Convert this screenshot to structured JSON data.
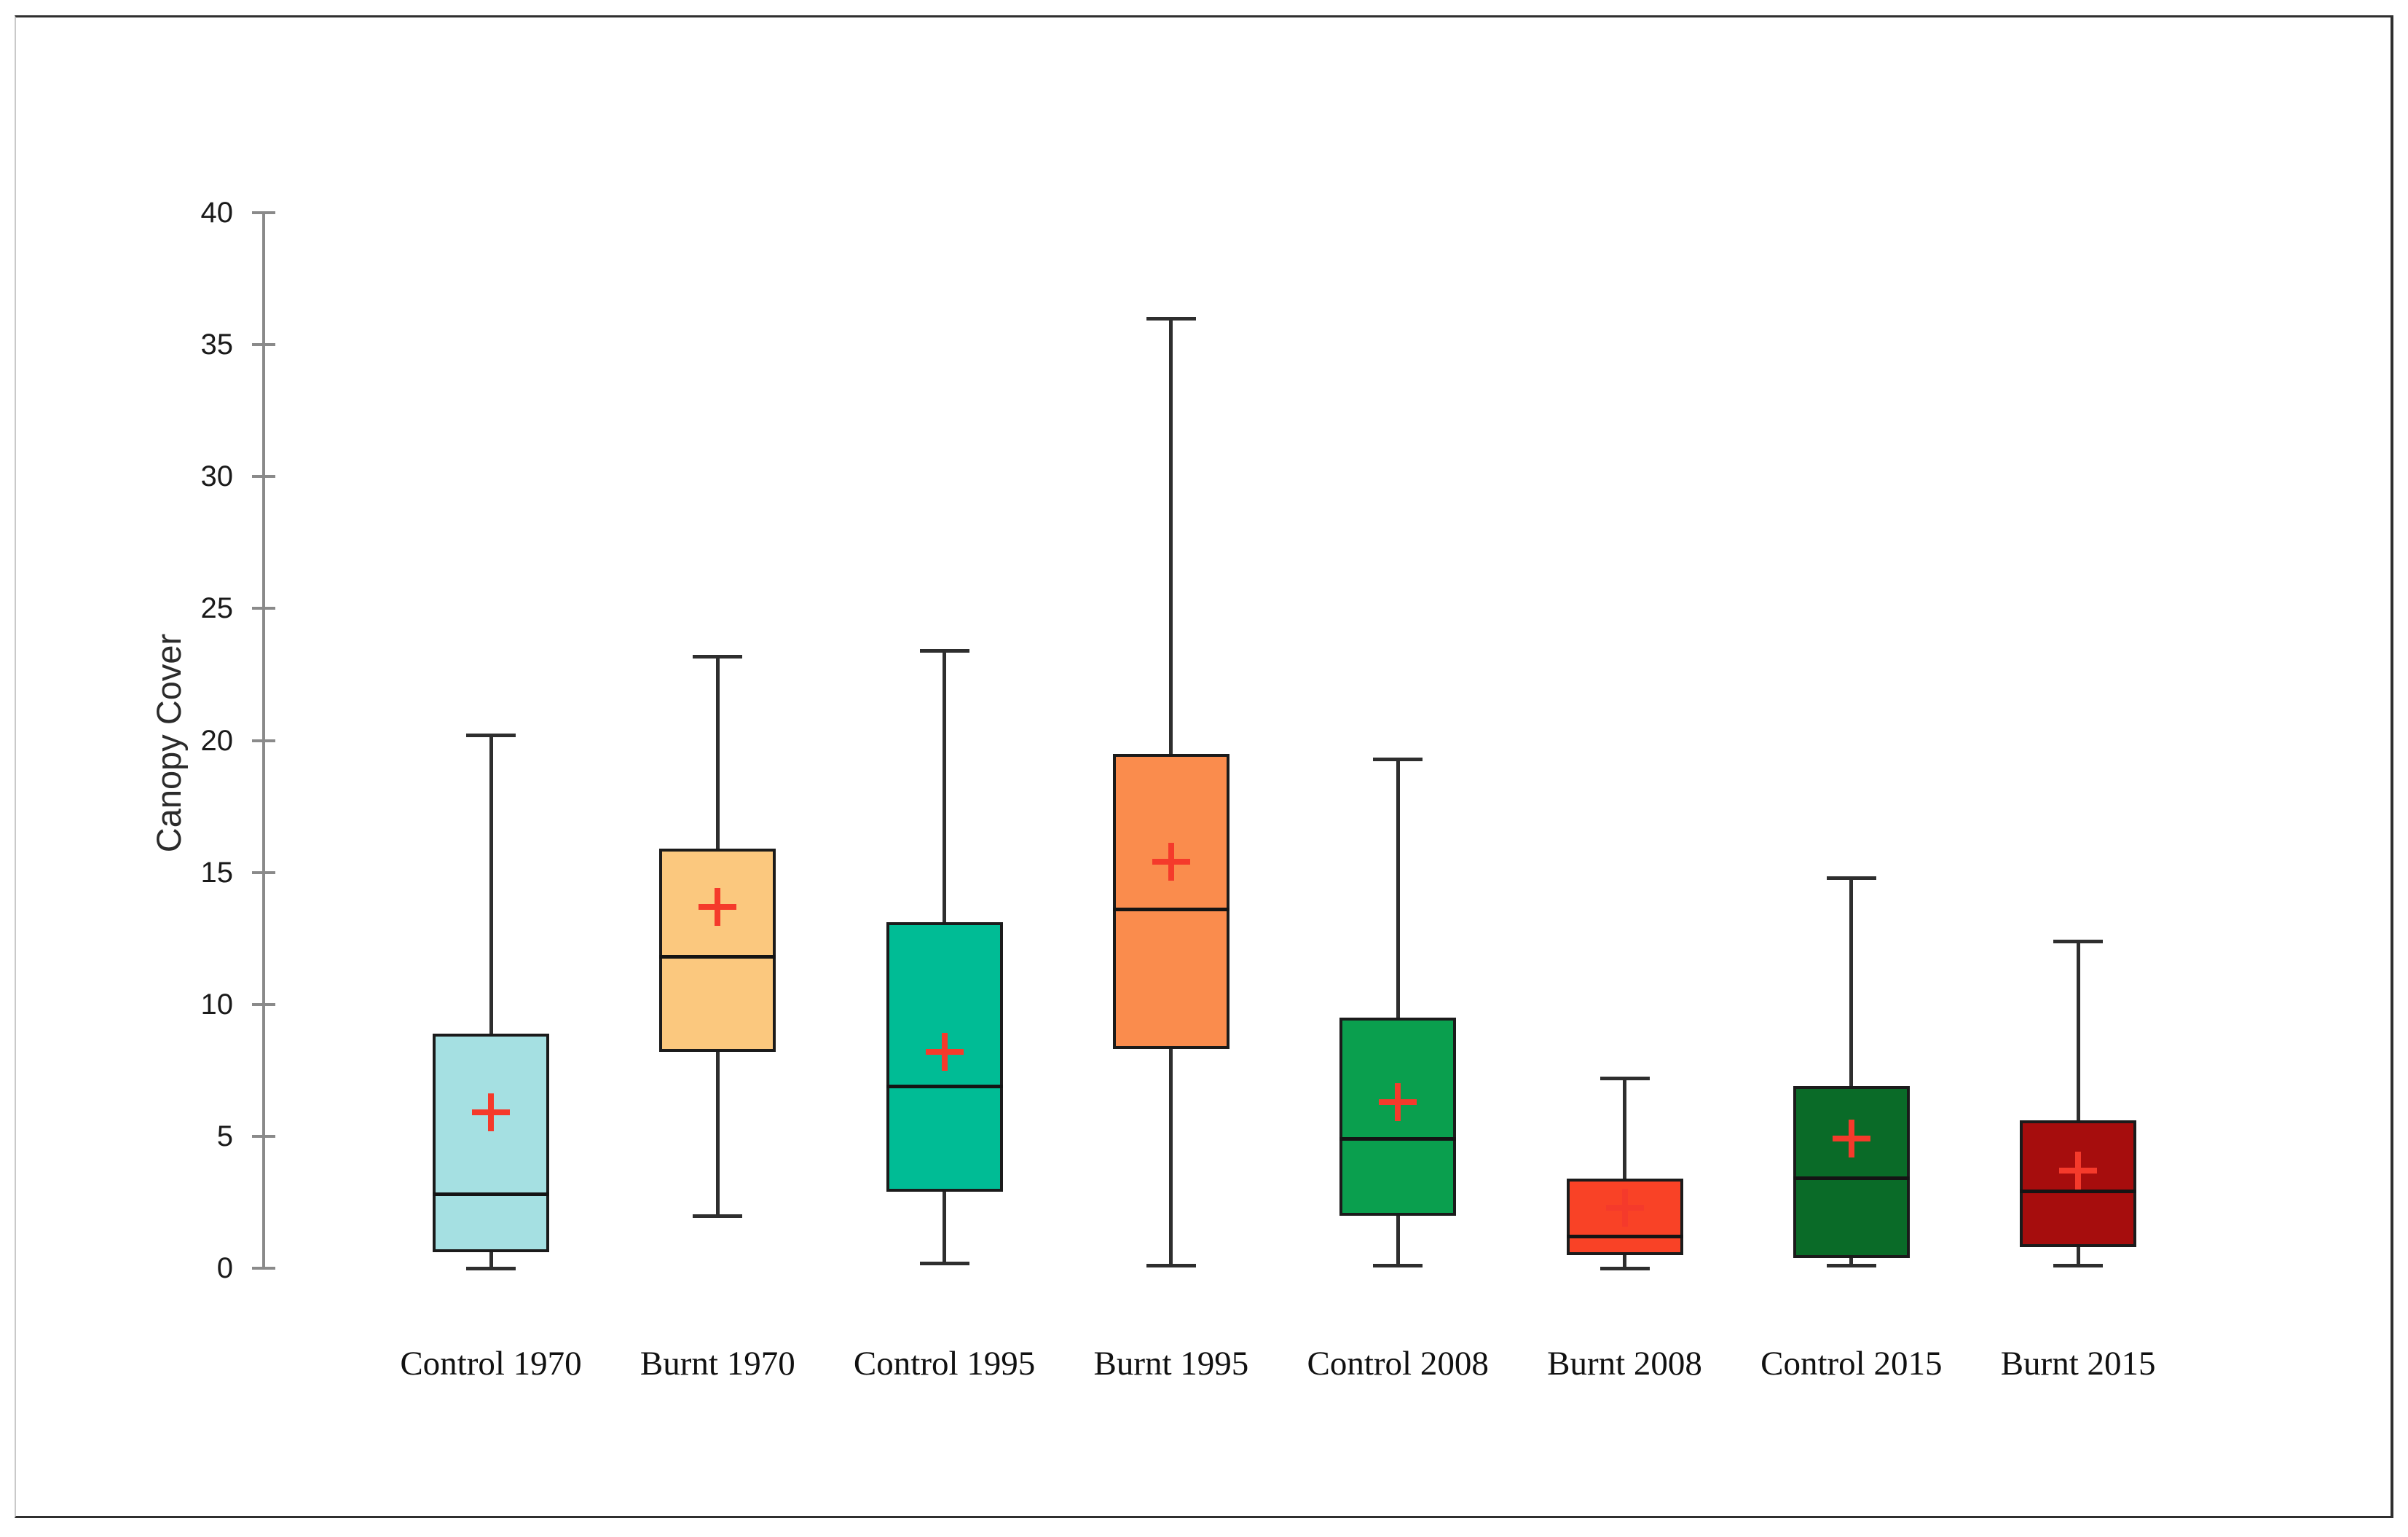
{
  "chart_data": {
    "type": "boxplot",
    "title": "",
    "ylabel": "Canopy Cover",
    "xlabel": "",
    "ylim": [
      0,
      40
    ],
    "yticks": [
      40,
      35,
      30,
      25,
      20,
      15,
      10,
      5,
      0
    ],
    "grid": false,
    "legend": "none",
    "mean_marker": "red plus",
    "categories": [
      "Control 1970",
      "Burnt 1970",
      "Control 1995",
      "Burnt 1995",
      "Control 2008",
      "Burnt 2008",
      "Control 2015",
      "Burnt 2015"
    ],
    "series": [
      {
        "name": "Control 1970",
        "color": "#A5E0E2",
        "min": 0.0,
        "q1": 0.6,
        "median": 2.8,
        "mean": 5.9,
        "q3": 8.9,
        "max": 20.2
      },
      {
        "name": "Burnt 1970",
        "color": "#FBC87E",
        "min": 2.0,
        "q1": 8.2,
        "median": 11.8,
        "mean": 13.7,
        "q3": 15.9,
        "max": 23.2
      },
      {
        "name": "Control 1995",
        "color": "#00BC95",
        "min": 0.2,
        "q1": 2.9,
        "median": 6.9,
        "mean": 8.2,
        "q3": 13.1,
        "max": 23.4
      },
      {
        "name": "Burnt 1995",
        "color": "#FA8C4D",
        "min": 0.1,
        "q1": 8.3,
        "median": 13.6,
        "mean": 15.4,
        "q3": 19.5,
        "max": 36.0
      },
      {
        "name": "Control 2008",
        "color": "#0A9F4E",
        "min": 0.1,
        "q1": 2.0,
        "median": 4.9,
        "mean": 6.3,
        "q3": 9.5,
        "max": 19.3
      },
      {
        "name": "Burnt 2008",
        "color": "#F94226",
        "min": 0.0,
        "q1": 0.5,
        "median": 1.2,
        "mean": 2.3,
        "q3": 3.4,
        "max": 7.2
      },
      {
        "name": "Control 2015",
        "color": "#0A6B28",
        "min": 0.1,
        "q1": 0.4,
        "median": 3.4,
        "mean": 4.9,
        "q3": 6.9,
        "max": 14.8
      },
      {
        "name": "Burnt 2015",
        "color": "#A60D0D",
        "min": 0.1,
        "q1": 0.8,
        "median": 2.9,
        "mean": 3.7,
        "q3": 5.6,
        "max": 12.4
      }
    ]
  },
  "colors": {
    "box_border": "#1b1b1b",
    "whisker": "#2e2e2e",
    "median": "#141414",
    "mean_marker": "#F53A2B",
    "axis": "#8a8a8a",
    "tick_label": "#1a1a1a",
    "category_label": "#111111",
    "frame_dark": "#2f2f2f",
    "frame_light": "#c9c9c9",
    "background": "#ffffff"
  }
}
